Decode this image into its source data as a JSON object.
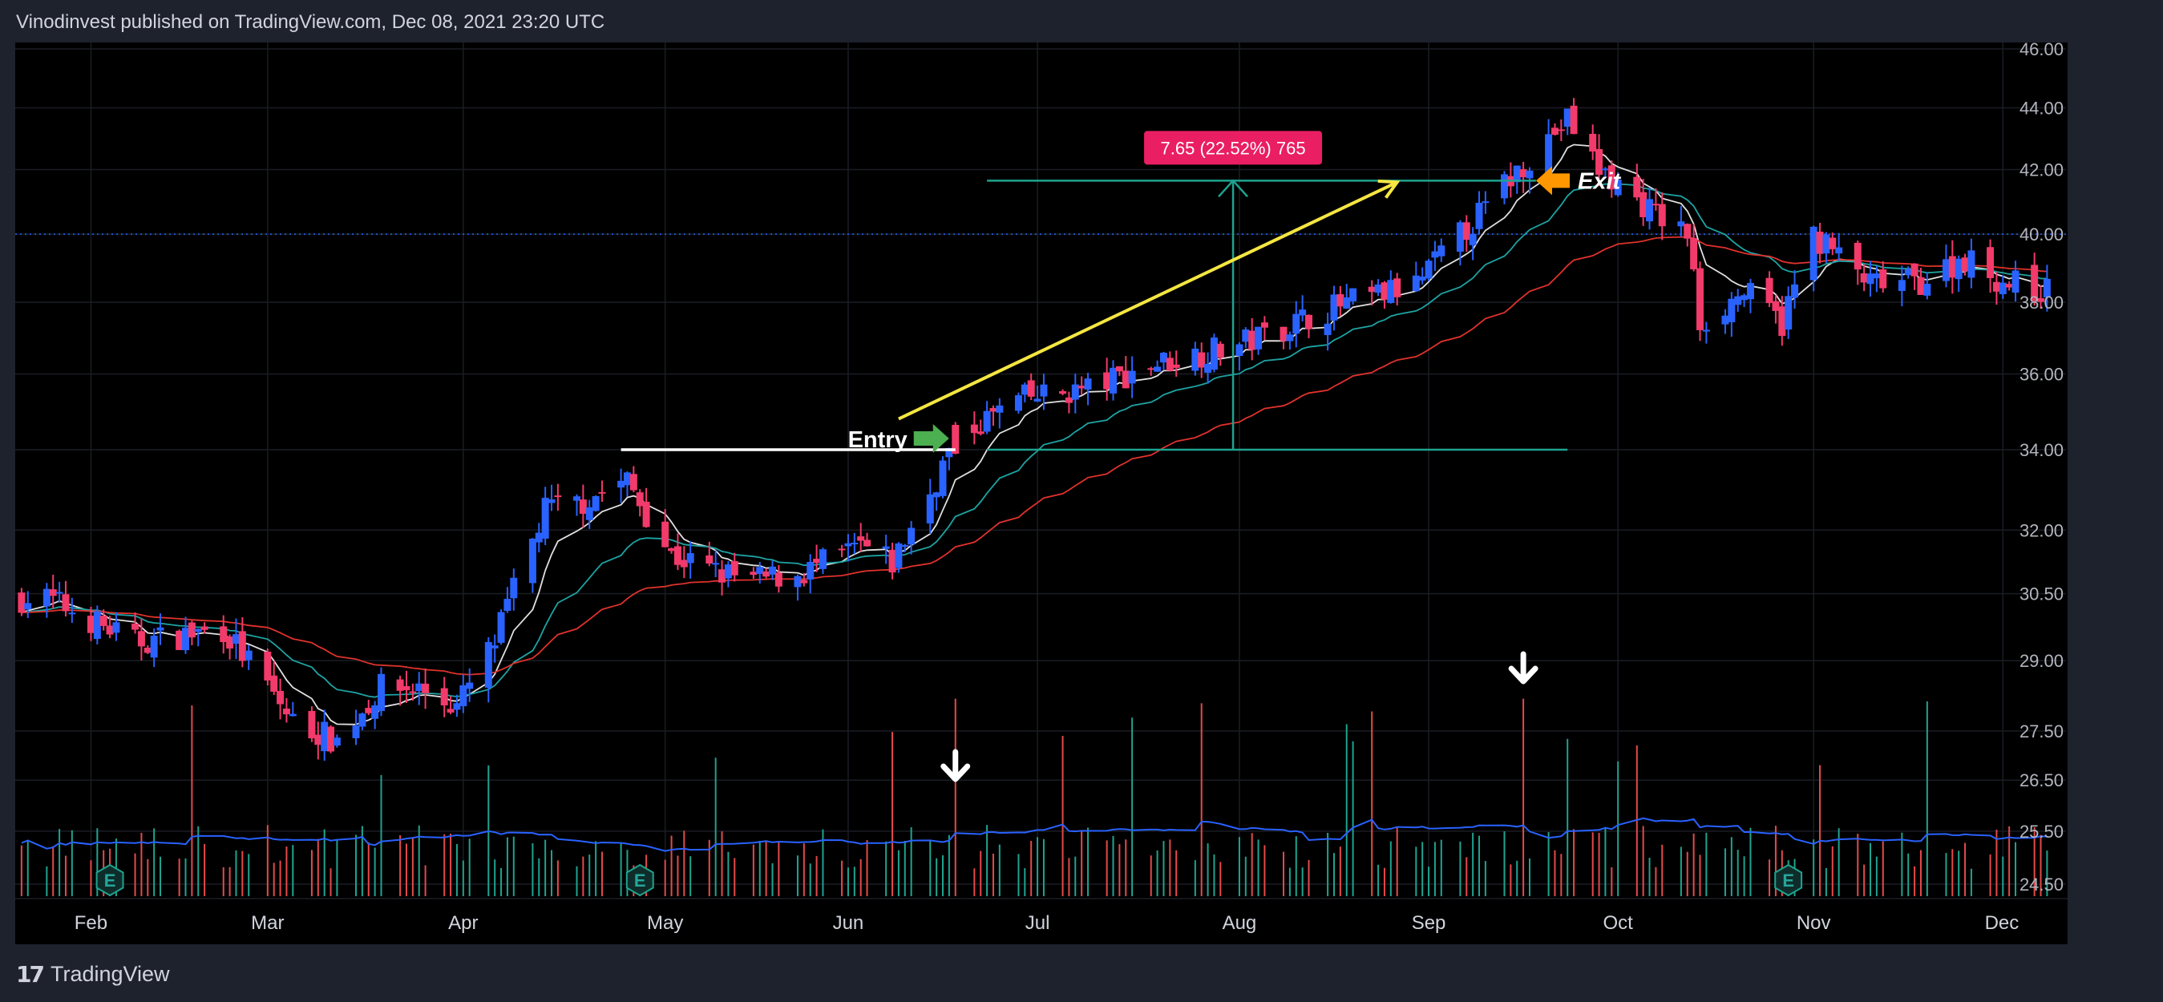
{
  "header": {
    "publisher": "Vinodinvest published on TradingView.com, Dec 08, 2021 23:20 UTC"
  },
  "footer": {
    "brand": "TradingView",
    "logo_icon": "tradingview-logo-icon"
  },
  "colors": {
    "background": "#000000",
    "frame": "#1e222d",
    "up_candle": "#2962ff",
    "down_candle": "#f23a6b",
    "ema_fast": "#e0e0e0",
    "ema_mid": "#1ea3a3",
    "ema_slow": "#e0322c",
    "volume_up": "#1fa38f",
    "volume_down": "#e34a4a",
    "volume_ma": "#2962ff",
    "trend_arrow": "#f5e642",
    "range_tool": "#1fa38f",
    "range_label": "#e91e63",
    "entry_arrow": "#4caf50",
    "exit_arrow": "#ff9800"
  },
  "chart_data": {
    "type": "candlestick",
    "y_axis_scale": "log",
    "y_ticks": [
      "46.00",
      "44.00",
      "42.00",
      "40.00",
      "38.00",
      "36.00",
      "34.00",
      "32.00",
      "30.50",
      "29.00",
      "27.50",
      "26.50",
      "25.50",
      "24.50"
    ],
    "x_ticks": [
      "Feb",
      "Mar",
      "Apr",
      "May",
      "Jun",
      "Jul",
      "Aug",
      "Sep",
      "Oct",
      "Nov",
      "Dec"
    ],
    "ylim": [
      24.2,
      46.2
    ],
    "price_anchors": [
      {
        "d": "2021-01-25",
        "p": 30.4
      },
      {
        "d": "2021-02-08",
        "p": 29.4
      },
      {
        "d": "2021-02-22",
        "p": 29.7
      },
      {
        "d": "2021-03-05",
        "p": 27.7
      },
      {
        "d": "2021-03-12",
        "p": 27.3
      },
      {
        "d": "2021-03-19",
        "p": 28.4
      },
      {
        "d": "2021-03-25",
        "p": 28.4
      },
      {
        "d": "2021-03-31",
        "p": 28.0
      },
      {
        "d": "2021-04-06",
        "p": 29.4
      },
      {
        "d": "2021-04-14",
        "p": 32.5
      },
      {
        "d": "2021-04-20",
        "p": 32.7
      },
      {
        "d": "2021-04-27",
        "p": 33.2
      },
      {
        "d": "2021-05-04",
        "p": 31.4
      },
      {
        "d": "2021-05-11",
        "p": 31.0
      },
      {
        "d": "2021-05-17",
        "p": 30.8
      },
      {
        "d": "2021-05-25",
        "p": 31.0
      },
      {
        "d": "2021-06-03",
        "p": 31.6
      },
      {
        "d": "2021-06-08",
        "p": 31.2
      },
      {
        "d": "2021-06-14",
        "p": 32.9
      },
      {
        "d": "2021-06-18",
        "p": 34.3
      },
      {
        "d": "2021-06-28",
        "p": 35.3
      },
      {
        "d": "2021-07-09",
        "p": 35.6
      },
      {
        "d": "2021-07-20",
        "p": 36.3
      },
      {
        "d": "2021-08-02",
        "p": 36.8
      },
      {
        "d": "2021-08-16",
        "p": 37.8
      },
      {
        "d": "2021-08-30",
        "p": 38.5
      },
      {
        "d": "2021-09-10",
        "p": 40.8
      },
      {
        "d": "2021-09-16",
        "p": 42.2
      },
      {
        "d": "2021-09-23",
        "p": 43.6
      },
      {
        "d": "2021-09-28",
        "p": 42.0
      },
      {
        "d": "2021-10-07",
        "p": 40.6
      },
      {
        "d": "2021-10-12",
        "p": 40.0
      },
      {
        "d": "2021-10-14",
        "p": 37.4
      },
      {
        "d": "2021-10-21",
        "p": 38.3
      },
      {
        "d": "2021-10-27",
        "p": 37.4
      },
      {
        "d": "2021-11-01",
        "p": 40.0
      },
      {
        "d": "2021-11-10",
        "p": 38.5
      },
      {
        "d": "2021-11-18",
        "p": 38.6
      },
      {
        "d": "2021-11-25",
        "p": 39.3
      },
      {
        "d": "2021-12-01",
        "p": 38.6
      },
      {
        "d": "2021-12-08",
        "p": 38.3
      }
    ],
    "reference_price": 40.0,
    "annotations": {
      "entry": {
        "label": "Entry",
        "date": "2021-06-18",
        "price": 34.0,
        "line_from": "2021-04-26"
      },
      "exit": {
        "label": "Exit",
        "date": "2021-09-17",
        "price": 41.65
      },
      "range": {
        "label": "7.65 (22.52%) 765",
        "start_price": 34.0,
        "end_price": 41.65,
        "from": "2021-06-23",
        "to": "2021-09-18",
        "measure_date": "2021-08-01"
      },
      "trend_arrow": {
        "from_date": "2021-06-09",
        "from_price": 34.8,
        "to_date": "2021-08-27",
        "to_price": 41.6
      },
      "volume_arrows": [
        "2021-06-18",
        "2021-09-16"
      ],
      "earnings_markers": {
        "label": "E",
        "dates": [
          "2021-02-04",
          "2021-04-29",
          "2021-10-28"
        ]
      }
    }
  }
}
